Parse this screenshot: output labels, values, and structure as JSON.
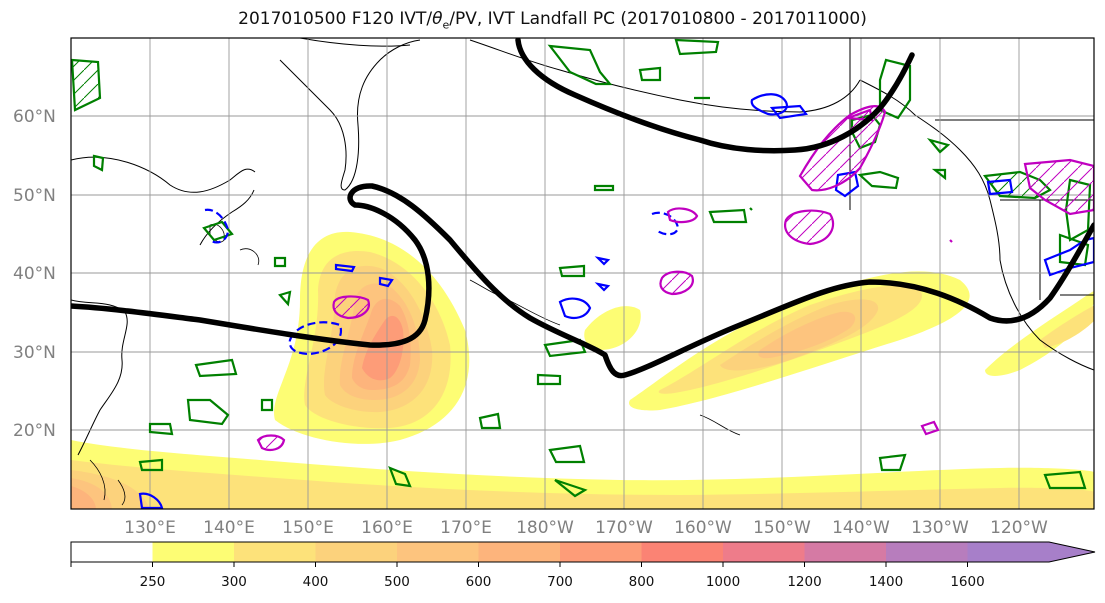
{
  "title_parts": {
    "pre": "2017010500 F120 IVT/",
    "theta": "θ",
    "sub": "e",
    "post": "/PV, IVT Landfall PC (2017010800 - 2017011000)"
  },
  "lat_labels": [
    "60°N",
    "50°N",
    "40°N",
    "30°N",
    "20°N"
  ],
  "lon_labels": [
    "130°E",
    "140°E",
    "150°E",
    "160°E",
    "170°E",
    "180°W",
    "170°W",
    "160°W",
    "150°W",
    "140°W",
    "130°W",
    "120°W"
  ],
  "colorbar": {
    "ticks": [
      "250",
      "300",
      "400",
      "500",
      "600",
      "700",
      "800",
      "1000",
      "1200",
      "1400",
      "1600"
    ],
    "colors": [
      "#ffffff",
      "#fdfd74",
      "#fde27a",
      "#fcd27c",
      "#fdc47e",
      "#fdb47c",
      "#fd9c78",
      "#fb8374",
      "#ee7c8a",
      "#d57aa4",
      "#b77dbd",
      "#a77fc9"
    ],
    "extend": "max"
  },
  "contour_colors": {
    "pc_line": "#000000",
    "theta_e": "#008000",
    "pv_negative": "#0000ff",
    "pv_positive": "#c000c0"
  },
  "grid": true
}
